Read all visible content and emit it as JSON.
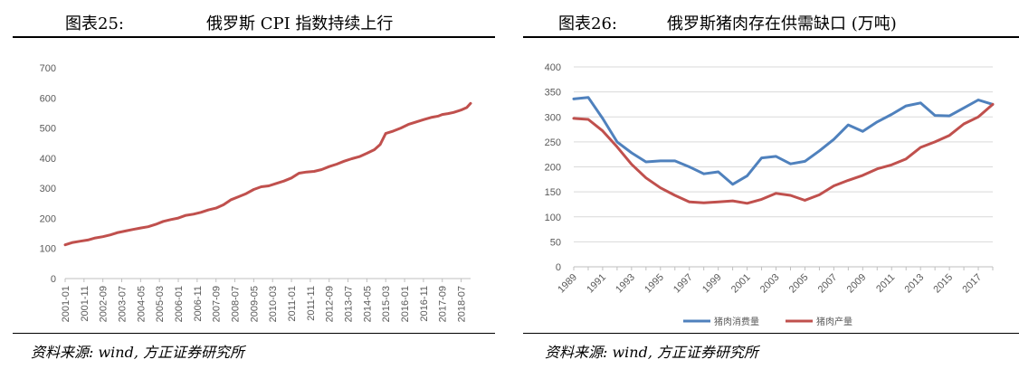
{
  "left": {
    "fig_label": "图表25:",
    "fig_title": "俄罗斯 CPI 指数持续上行",
    "source": "资料来源: wind, 方正证券研究所",
    "chart_data": {
      "type": "line",
      "title": "",
      "xlabel": "",
      "ylabel": "",
      "ylim": [
        0,
        700
      ],
      "yticks": [
        0,
        100,
        200,
        300,
        400,
        500,
        600,
        700
      ],
      "grid": false,
      "xticks": [
        "2001-01",
        "2001-11",
        "2002-09",
        "2003-07",
        "2004-05",
        "2005-03",
        "2006-01",
        "2006-11",
        "2007-09",
        "2008-07",
        "2009-05",
        "2010-03",
        "2011-01",
        "2011-11",
        "2012-09",
        "2013-07",
        "2014-05",
        "2015-03",
        "2016-01",
        "2016-11",
        "2017-09",
        "2018-07"
      ],
      "series": [
        {
          "name": "",
          "color": "#C0504D",
          "points": [
            [
              "2001-01",
              112
            ],
            [
              "2001-05",
              120
            ],
            [
              "2001-09",
              124
            ],
            [
              "2002-01",
              128
            ],
            [
              "2002-05",
              135
            ],
            [
              "2002-09",
              139
            ],
            [
              "2003-01",
              145
            ],
            [
              "2003-05",
              153
            ],
            [
              "2003-09",
              158
            ],
            [
              "2004-01",
              163
            ],
            [
              "2004-05",
              168
            ],
            [
              "2004-09",
              172
            ],
            [
              "2005-01",
              180
            ],
            [
              "2005-05",
              190
            ],
            [
              "2005-09",
              196
            ],
            [
              "2006-01",
              201
            ],
            [
              "2006-05",
              210
            ],
            [
              "2006-09",
              214
            ],
            [
              "2007-01",
              220
            ],
            [
              "2007-05",
              228
            ],
            [
              "2007-09",
              234
            ],
            [
              "2008-01",
              245
            ],
            [
              "2008-05",
              262
            ],
            [
              "2008-09",
              272
            ],
            [
              "2009-01",
              282
            ],
            [
              "2009-05",
              296
            ],
            [
              "2009-09",
              305
            ],
            [
              "2010-01",
              308
            ],
            [
              "2010-05",
              316
            ],
            [
              "2010-09",
              324
            ],
            [
              "2011-01",
              334
            ],
            [
              "2011-05",
              350
            ],
            [
              "2011-09",
              354
            ],
            [
              "2012-01",
              356
            ],
            [
              "2012-05",
              362
            ],
            [
              "2012-09",
              372
            ],
            [
              "2013-01",
              380
            ],
            [
              "2013-05",
              390
            ],
            [
              "2013-09",
              398
            ],
            [
              "2014-01",
              405
            ],
            [
              "2014-05",
              416
            ],
            [
              "2014-09",
              428
            ],
            [
              "2014-12",
              445
            ],
            [
              "2015-03",
              482
            ],
            [
              "2015-07",
              490
            ],
            [
              "2015-11",
              500
            ],
            [
              "2016-03",
              512
            ],
            [
              "2016-07",
              520
            ],
            [
              "2016-11",
              528
            ],
            [
              "2017-03",
              535
            ],
            [
              "2017-07",
              540
            ],
            [
              "2017-09",
              545
            ],
            [
              "2017-12",
              548
            ],
            [
              "2018-03",
              552
            ],
            [
              "2018-07",
              560
            ],
            [
              "2018-10",
              568
            ],
            [
              "2018-12",
              582
            ]
          ]
        }
      ]
    }
  },
  "right": {
    "fig_label": "图表26:",
    "fig_title": "俄罗斯猪肉存在供需缺口 (万吨)",
    "source": "资料来源: wind, 方正证券研究所",
    "chart_data": {
      "type": "line",
      "title": "",
      "xlabel": "",
      "ylabel": "",
      "ylim": [
        0,
        400
      ],
      "yticks": [
        0,
        50,
        100,
        150,
        200,
        250,
        300,
        350,
        400
      ],
      "grid": true,
      "legend_placement": "bottom",
      "x": [
        1989,
        1990,
        1991,
        1992,
        1993,
        1994,
        1995,
        1996,
        1997,
        1998,
        1999,
        2000,
        2001,
        2002,
        2003,
        2004,
        2005,
        2006,
        2007,
        2008,
        2009,
        2010,
        2011,
        2012,
        2013,
        2014,
        2015,
        2016,
        2017,
        2018
      ],
      "xticks": [
        1989,
        1991,
        1993,
        1995,
        1997,
        1999,
        2001,
        2003,
        2005,
        2007,
        2009,
        2011,
        2013,
        2015,
        2017
      ],
      "series": [
        {
          "name": "猪肉消费量",
          "color": "#4F81BD",
          "values": [
            336,
            339,
            297,
            250,
            228,
            210,
            212,
            212,
            200,
            186,
            190,
            165,
            182,
            218,
            221,
            206,
            211,
            232,
            255,
            284,
            271,
            290,
            305,
            322,
            328,
            303,
            302,
            318,
            334,
            325
          ]
        },
        {
          "name": "猪肉产量",
          "color": "#C0504D",
          "values": [
            297,
            295,
            272,
            240,
            205,
            178,
            158,
            143,
            130,
            128,
            130,
            132,
            127,
            135,
            147,
            143,
            133,
            144,
            162,
            173,
            183,
            196,
            204,
            216,
            239,
            250,
            263,
            286,
            300,
            325
          ]
        }
      ]
    }
  }
}
